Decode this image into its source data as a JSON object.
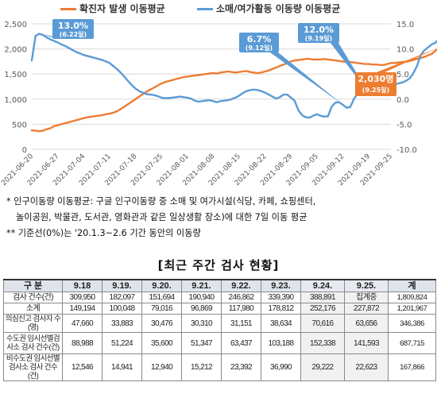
{
  "chart_data": {
    "type": "line",
    "legend": [
      {
        "label": "확진자 발생 이동평균",
        "color": "#ed7d31"
      },
      {
        "label": "소매/여가활동 이동량 이동평균",
        "color": "#5b9bd5"
      }
    ],
    "legend_position": "top",
    "grid": "horizontal",
    "x_ticks": [
      "2021-06-20",
      "2021-06-27",
      "2021-07-04",
      "2021-07-11",
      "2021-07-18",
      "2021-07-25",
      "2021-08-01",
      "2021-08-08",
      "2021-08-15",
      "2021-08-22",
      "2021-08-29",
      "2021-09-05",
      "2021-09-12",
      "2021-09-19",
      "2021-09-25"
    ],
    "y_left": {
      "min": 0,
      "max": 2500,
      "ticks": [
        "0",
        "500",
        "1,000",
        "1,500",
        "2,000",
        "2,500"
      ]
    },
    "y_right": {
      "min": -10,
      "max": 15,
      "ticks": [
        "-10.0",
        "-5.0",
        "0.0",
        "5.0",
        "10.0",
        "15.0"
      ]
    },
    "series": [
      {
        "name": "확진자 발생 이동평균",
        "axis": "left",
        "color": "#ed7d31",
        "start_date": "2021-06-20",
        "values": [
          380,
          370,
          360,
          370,
          400,
          420,
          460,
          480,
          500,
          520,
          540,
          560,
          580,
          600,
          620,
          640,
          650,
          660,
          670,
          680,
          700,
          710,
          730,
          760,
          800,
          850,
          900,
          950,
          1000,
          1050,
          1100,
          1150,
          1190,
          1230,
          1270,
          1310,
          1340,
          1360,
          1380,
          1400,
          1420,
          1440,
          1450,
          1460,
          1470,
          1480,
          1490,
          1500,
          1510,
          1520,
          1510,
          1530,
          1540,
          1550,
          1540,
          1530,
          1540,
          1550,
          1560,
          1540,
          1530,
          1520,
          1530,
          1550,
          1570,
          1600,
          1630,
          1660,
          1690,
          1720,
          1750,
          1770,
          1780,
          1790,
          1800,
          1800,
          1790,
          1790,
          1790,
          1800,
          1790,
          1780,
          1770,
          1760,
          1750,
          1740,
          1740,
          1730,
          1720,
          1710,
          1700,
          1700,
          1690,
          1690,
          1680,
          1680,
          1700,
          1720,
          1720,
          1730,
          1740,
          1740,
          1760,
          1780,
          1800,
          1820,
          1840,
          1870,
          1900,
          1960,
          2030
        ]
      },
      {
        "name": "소매/여가활동 이동량 이동평균",
        "axis": "right",
        "color": "#5b9bd5",
        "start_date": "2021-06-20",
        "values": [
          7.7,
          12.6,
          13.0,
          12.8,
          12.3,
          11.9,
          11.6,
          11.3,
          10.9,
          10.6,
          10.2,
          9.8,
          9.4,
          9.1,
          8.8,
          8.6,
          8.4,
          8.2,
          8.0,
          7.8,
          7.5,
          7.2,
          6.6,
          6.0,
          5.3,
          4.5,
          3.6,
          2.8,
          2.1,
          1.6,
          1.3,
          1.0,
          0.9,
          0.8,
          0.6,
          0.3,
          0.2,
          0.2,
          0.3,
          0.4,
          0.5,
          0.4,
          0.3,
          0.1,
          -0.3,
          -0.5,
          -0.4,
          -0.3,
          -0.2,
          -0.4,
          -0.6,
          -0.4,
          -0.3,
          -0.2,
          0.0,
          0.3,
          0.7,
          1.2,
          1.6,
          1.8,
          1.9,
          1.8,
          1.6,
          1.3,
          0.9,
          0.5,
          0.1,
          0.4,
          0.9,
          0.9,
          0.3,
          -0.3,
          -2.2,
          -3.2,
          -3.6,
          -3.7,
          -3.3,
          -3.0,
          -3.3,
          -3.5,
          -3.4,
          -1.5,
          -0.7,
          -0.6,
          -1.1,
          -1.7,
          -1.6,
          0.0,
          1.2,
          1.4,
          1.4,
          1.2,
          1.2,
          1.4,
          2.0,
          2.6,
          2.8,
          3.0,
          3.0,
          3.1,
          3.3,
          3.6,
          4.1,
          5.1,
          6.5,
          8.7,
          9.7,
          10.3,
          10.9,
          11.2,
          12.0
        ]
      }
    ],
    "annotations": [
      {
        "value": "13.0%",
        "date": "(6.22일)"
      },
      {
        "value": "6.7%",
        "date": "(9.12일)"
      },
      {
        "value": "12.0%",
        "date": "(9.19일)"
      },
      {
        "value": "2,030명",
        "date": "(9.25일)"
      }
    ]
  },
  "notes": {
    "line1": "*  인구이동량 이동평균: 구글 인구이동량 중 소매 및 여가시설(식당, 카페, 쇼핑센터,",
    "line2": "놀이공원, 박물관, 도서관, 영화관과 같은 일상생활 장소)에 대한 7일 이동 평균",
    "line3": "** 기준선(0%)는 '20.1.3~2.6 기간 동안의 이동량"
  },
  "table": {
    "title": "[최근 주간 검사 현황]",
    "header": [
      "구 분",
      "9.18",
      "9.19.",
      "9.20.",
      "9.21.",
      "9.22.",
      "9.23.",
      "9.24.",
      "9.25.",
      "계"
    ],
    "rows": [
      {
        "label": "검사 건수(건)",
        "cells": [
          "309,950",
          "182,097",
          "151,694",
          "190,940",
          "246,862",
          "339,390",
          "388,891",
          "집계중",
          "1,809,824"
        ]
      },
      {
        "label": "소계",
        "cells": [
          "149,194",
          "100,048",
          "79,016",
          "96,869",
          "117,980",
          "178,812",
          "252,176",
          "227,872",
          "1,201,967"
        ]
      },
      {
        "label": "의심신고 검사자 수(명)",
        "cells": [
          "47,660",
          "33,883",
          "30,476",
          "30,310",
          "31,151",
          "38,634",
          "70,616",
          "63,656",
          "346,386"
        ]
      },
      {
        "label": "수도권 임시선별검사소 검사 건수(건)",
        "cells": [
          "88,988",
          "51,224",
          "35,600",
          "51,347",
          "63,437",
          "103,188",
          "152,338",
          "141,593",
          "687,715"
        ]
      },
      {
        "label": "비수도권 임시선별검사소 검사 건수(건)",
        "cells": [
          "12,546",
          "14,941",
          "12,940",
          "15,212",
          "23,392",
          "36,990",
          "29,222",
          "22,623",
          "167,866"
        ]
      }
    ]
  }
}
